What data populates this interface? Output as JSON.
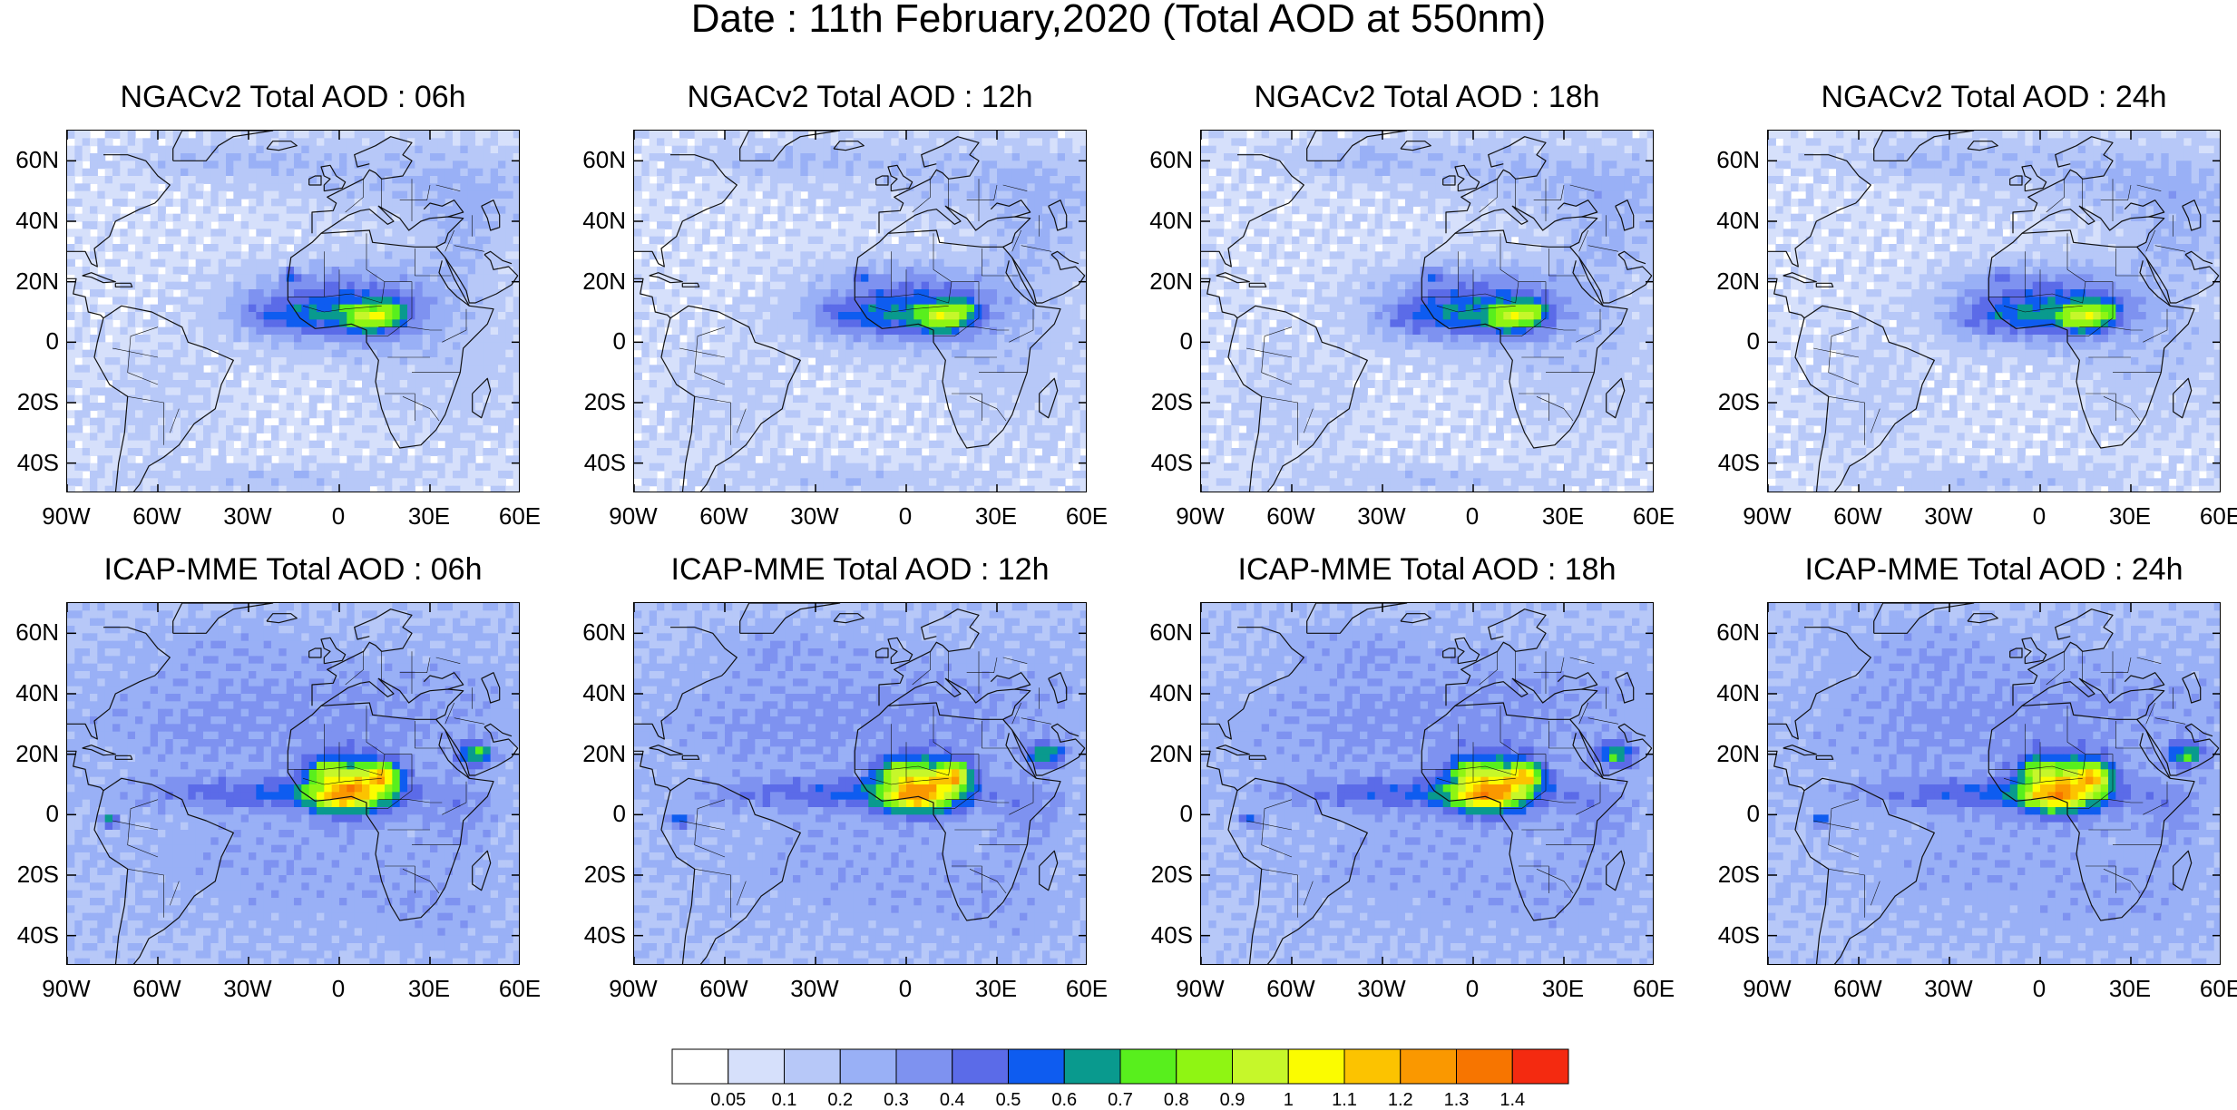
{
  "figure_title": "Date : 11th February,2020 (Total AOD at 550nm)",
  "axes": {
    "lat_labels": [
      "60N",
      "40N",
      "20N",
      "0",
      "20S",
      "40S"
    ],
    "lat_values": [
      60,
      40,
      20,
      0,
      -20,
      -40
    ],
    "lon_labels": [
      "90W",
      "60W",
      "30W",
      "0",
      "30E",
      "60E"
    ],
    "lon_values": [
      -90,
      -60,
      -30,
      0,
      30,
      60
    ],
    "lat_range": [
      -50,
      70
    ],
    "lon_range": [
      -90,
      60
    ]
  },
  "panels": [
    {
      "title": "NGACv2 Total AOD : 06h",
      "model": "NGACv2",
      "forecast_hour": "06h"
    },
    {
      "title": "NGACv2 Total AOD : 12h",
      "model": "NGACv2",
      "forecast_hour": "12h"
    },
    {
      "title": "NGACv2 Total AOD : 18h",
      "model": "NGACv2",
      "forecast_hour": "18h"
    },
    {
      "title": "NGACv2 Total AOD : 24h",
      "model": "NGACv2",
      "forecast_hour": "24h"
    },
    {
      "title": "ICAP-MME Total AOD : 06h",
      "model": "ICAP-MME",
      "forecast_hour": "06h"
    },
    {
      "title": "ICAP-MME Total AOD : 12h",
      "model": "ICAP-MME",
      "forecast_hour": "12h"
    },
    {
      "title": "ICAP-MME Total AOD : 18h",
      "model": "ICAP-MME",
      "forecast_hour": "18h"
    },
    {
      "title": "ICAP-MME Total AOD : 24h",
      "model": "ICAP-MME",
      "forecast_hour": "24h"
    }
  ],
  "colorbar": {
    "labels": [
      "0.05",
      "0.1",
      "0.2",
      "0.3",
      "0.4",
      "0.5",
      "0.6",
      "0.7",
      "0.8",
      "0.9",
      "1",
      "1.1",
      "1.2",
      "1.3",
      "1.4"
    ],
    "colors": [
      "#ffffff",
      "#d6e0fb",
      "#b7c8f8",
      "#99b0f6",
      "#7e92f0",
      "#5b6be8",
      "#0e5cf0",
      "#099a8e",
      "#58ef1d",
      "#8ff513",
      "#c6f72a",
      "#fbfc00",
      "#fcc300",
      "#fa9800",
      "#f77500",
      "#f42a10"
    ]
  }
}
